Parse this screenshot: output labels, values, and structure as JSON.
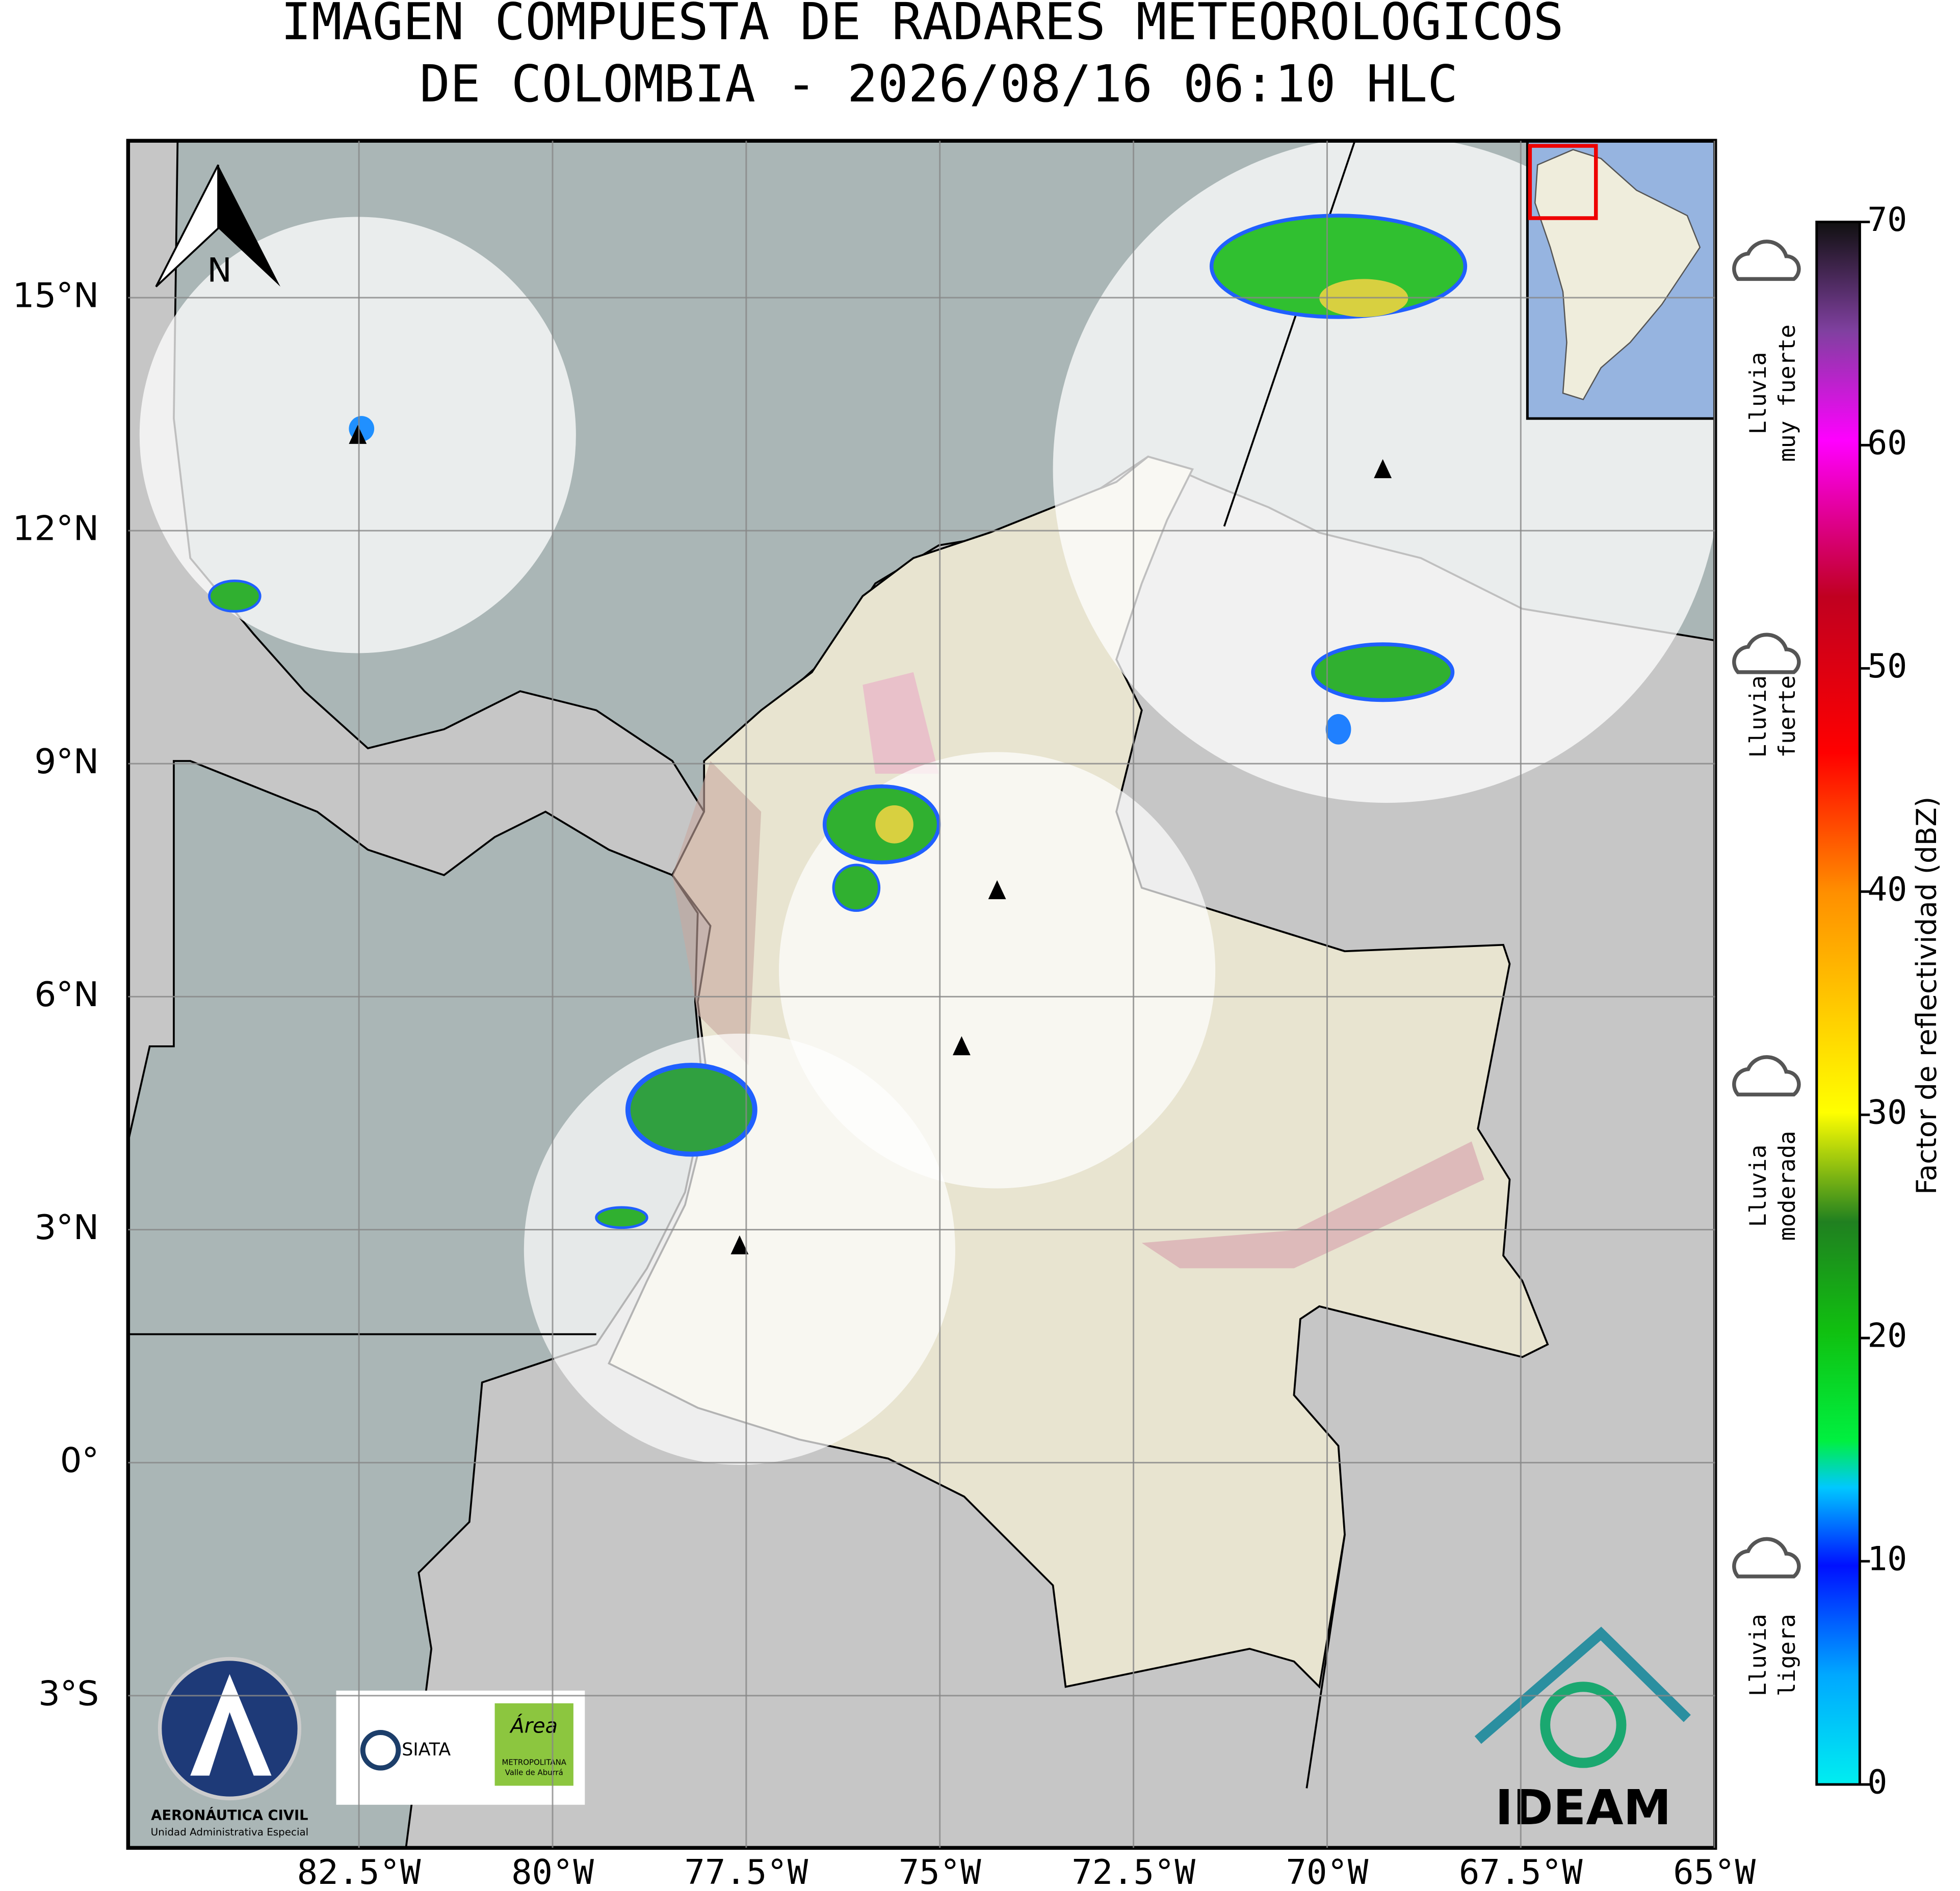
{
  "title": [
    "IMAGEN COMPUESTA DE RADARES METEOROLOGICOS",
    "DE COLOMBIA - 2026/08/16 06:10 HLC"
  ],
  "map": {
    "lon_range": [
      -85.48,
      -64.99
    ],
    "lat_range": [
      -4.96,
      17.02
    ],
    "lon_ticks": [
      {
        "value": -82.5,
        "label": "82.5°W"
      },
      {
        "value": -80,
        "label": "80°W"
      },
      {
        "value": -77.5,
        "label": "77.5°W"
      },
      {
        "value": -75,
        "label": "75°W"
      },
      {
        "value": -72.5,
        "label": "72.5°W"
      },
      {
        "value": -70,
        "label": "70°W"
      },
      {
        "value": -67.5,
        "label": "67.5°W"
      },
      {
        "value": -65,
        "label": "65°W"
      }
    ],
    "lat_ticks": [
      {
        "value": 15,
        "label": "15°N"
      },
      {
        "value": 12,
        "label": "12°N"
      },
      {
        "value": 9,
        "label": "9°N"
      },
      {
        "value": 6,
        "label": "6°N"
      },
      {
        "value": 3,
        "label": "3°N"
      },
      {
        "value": 0,
        "label": "0°"
      },
      {
        "value": -3,
        "label": "3°S"
      }
    ],
    "north": "N"
  },
  "colorbar": {
    "label": "Factor de reflectividad (dBZ)",
    "range": [
      0,
      70
    ],
    "ticks": [
      0,
      10,
      20,
      30,
      40,
      50,
      60,
      70
    ]
  },
  "rain_levels": [
    [
      "Lluvia",
      "ligera"
    ],
    [
      "Lluvia",
      "moderada"
    ],
    [
      "Lluvia",
      "fuerte"
    ],
    [
      "Lluvia",
      "muy fuerte"
    ]
  ],
  "logos": {
    "aerocivil": [
      "AERONÁUTICA CIVIL",
      "Unidad Administrativa Especial"
    ],
    "siata": "SIATA",
    "area": [
      "Área",
      "METROPOLITANA",
      "Valle de Aburrá"
    ],
    "ideam": "IDEAM"
  }
}
